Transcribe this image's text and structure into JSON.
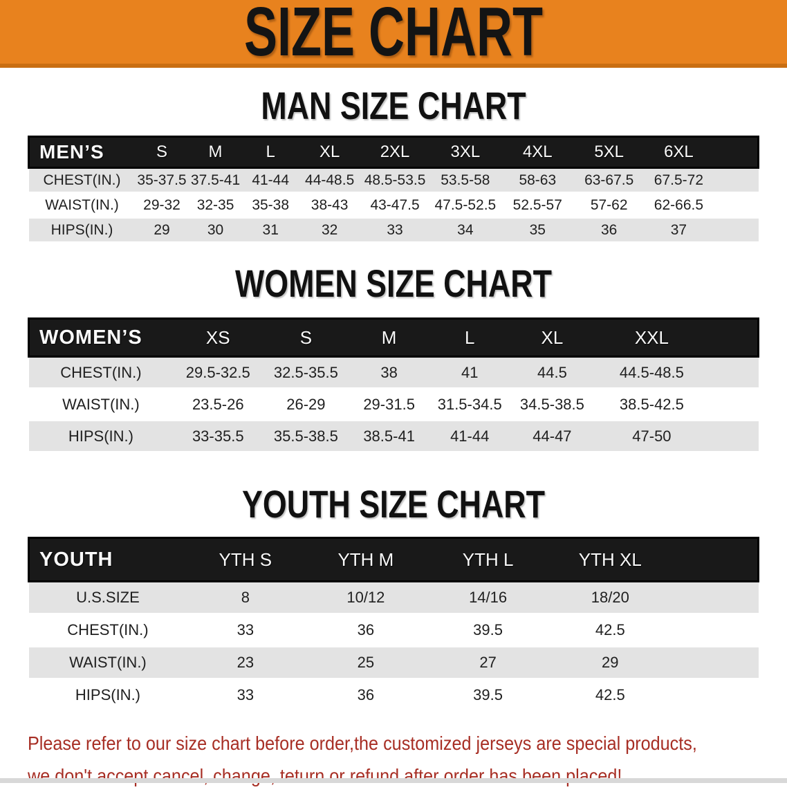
{
  "banner": {
    "title": "SIZE CHART"
  },
  "sections": [
    {
      "key": "men",
      "heading": "MAN SIZE CHART",
      "table": {
        "label_header": "MEN’S",
        "columns": [
          "S",
          "M",
          "L",
          "XL",
          "2XL",
          "3XL",
          "4XL",
          "5XL",
          "6XL"
        ],
        "rows": [
          {
            "label": "CHEST(IN.)",
            "values": [
              "35-37.5",
              "37.5-41",
              "41-44",
              "44-48.5",
              "48.5-53.5",
              "53.5-58",
              "58-63",
              "63-67.5",
              "67.5-72"
            ]
          },
          {
            "label": "WAIST(IN.)",
            "values": [
              "29-32",
              "32-35",
              "35-38",
              "38-43",
              "43-47.5",
              "47.5-52.5",
              "52.5-57",
              "57-62",
              "62-66.5"
            ]
          },
          {
            "label": "HIPS(IN.)",
            "values": [
              "29",
              "30",
              "31",
              "32",
              "33",
              "34",
              "35",
              "36",
              "37"
            ]
          }
        ]
      }
    },
    {
      "key": "women",
      "heading": "WOMEN SIZE CHART",
      "table": {
        "label_header": "WOMEN’S",
        "columns": [
          "XS",
          "S",
          "M",
          "L",
          "XL",
          "XXL"
        ],
        "rows": [
          {
            "label": "CHEST(IN.)",
            "values": [
              "29.5-32.5",
              "32.5-35.5",
              "38",
              "41",
              "44.5",
              "44.5-48.5"
            ]
          },
          {
            "label": "WAIST(IN.)",
            "values": [
              "23.5-26",
              "26-29",
              "29-31.5",
              "31.5-34.5",
              "34.5-38.5",
              "38.5-42.5"
            ]
          },
          {
            "label": "HIPS(IN.)",
            "values": [
              "33-35.5",
              "35.5-38.5",
              "38.5-41",
              "41-44",
              "44-47",
              "47-50"
            ]
          }
        ]
      }
    },
    {
      "key": "youth",
      "heading": "YOUTH SIZE CHART",
      "table": {
        "label_header": "YOUTH",
        "columns": [
          "YTH S",
          "YTH M",
          "YTH L",
          "YTH XL"
        ],
        "rows": [
          {
            "label": "U.S.SIZE",
            "values": [
              "8",
              "10/12",
              "14/16",
              "18/20"
            ]
          },
          {
            "label": "CHEST(IN.)",
            "values": [
              "33",
              "36",
              "39.5",
              "42.5"
            ]
          },
          {
            "label": "WAIST(IN.)",
            "values": [
              "23",
              "25",
              "27",
              "29"
            ]
          },
          {
            "label": "HIPS(IN.)",
            "values": [
              "33",
              "36",
              "39.5",
              "42.5"
            ]
          }
        ]
      }
    }
  ],
  "note": {
    "line1": "Please refer to our size chart before order,the customized jerseys are special products,",
    "line2": "we don't accept cancel, change, teturn or refund after order has been placed!"
  },
  "colors": {
    "banner_orange": "#E8821E",
    "banner_edge": "#C96E12",
    "header_bar": "#191919",
    "row_shade": "#E3E3E3",
    "note_red": "#A72E24"
  }
}
